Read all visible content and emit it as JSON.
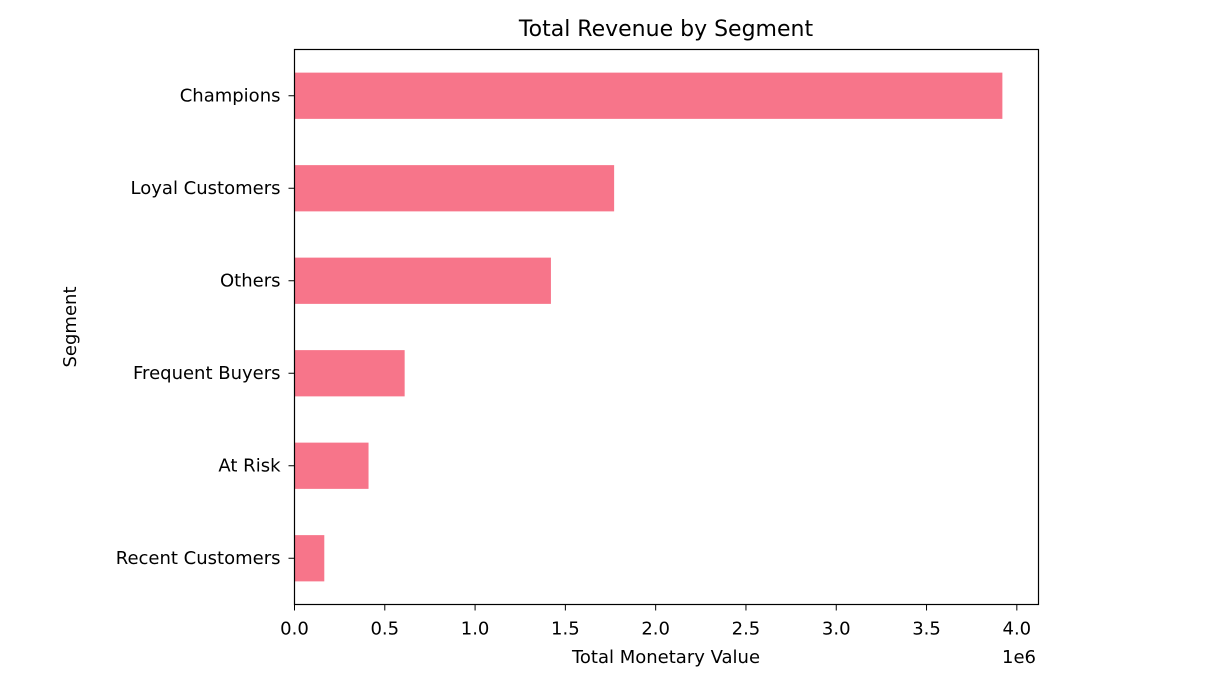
{
  "chart_data": {
    "type": "bar",
    "orientation": "horizontal",
    "title": "Total Revenue by Segment",
    "xlabel": "Total Monetary Value",
    "ylabel": "Segment",
    "x_offset_label": "1e6",
    "categories": [
      "Champions",
      "Loyal Customers",
      "Others",
      "Frequent Buyers",
      "At Risk",
      "Recent Customers"
    ],
    "values": [
      3920000,
      1770000,
      1420000,
      610000,
      410000,
      165000
    ],
    "xlim": [
      0,
      4120000
    ],
    "xticks": [
      0,
      500000,
      1000000,
      1500000,
      2000000,
      2500000,
      3000000,
      3500000,
      4000000
    ],
    "xtick_labels": [
      "0.0",
      "0.5",
      "1.0",
      "1.5",
      "2.0",
      "2.5",
      "3.0",
      "3.5",
      "4.0"
    ],
    "bar_color": "#f7758a",
    "grid": false,
    "legend": "none"
  }
}
